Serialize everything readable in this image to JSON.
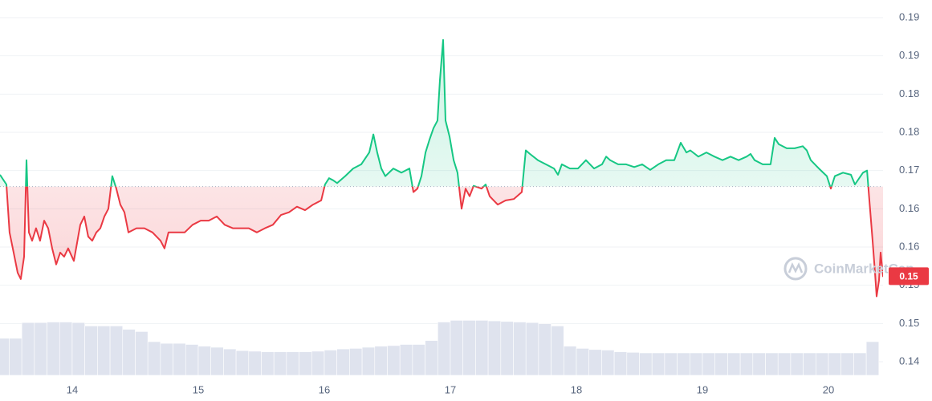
{
  "chart_data": {
    "type": "line",
    "watermark": "CoinMarketCap",
    "x": [
      13.427,
      13.478,
      13.503,
      13.535,
      13.567,
      13.592,
      13.618,
      13.637,
      13.656,
      13.682,
      13.713,
      13.745,
      13.777,
      13.809,
      13.841,
      13.873,
      13.905,
      13.936,
      13.968,
      14.013,
      14.064,
      14.096,
      14.127,
      14.159,
      14.191,
      14.223,
      14.255,
      14.287,
      14.318,
      14.35,
      14.382,
      14.414,
      14.446,
      14.51,
      14.573,
      14.637,
      14.701,
      14.732,
      14.764,
      14.828,
      14.892,
      14.955,
      15.019,
      15.083,
      15.147,
      15.21,
      15.274,
      15.338,
      15.401,
      15.465,
      15.529,
      15.592,
      15.656,
      15.72,
      15.783,
      15.847,
      15.911,
      15.975,
      16.006,
      16.038,
      16.07,
      16.102,
      16.166,
      16.229,
      16.293,
      16.357,
      16.389,
      16.42,
      16.452,
      16.484,
      16.548,
      16.612,
      16.675,
      16.707,
      16.739,
      16.771,
      16.803,
      16.834,
      16.866,
      16.898,
      16.917,
      16.943,
      16.962,
      16.994,
      17.026,
      17.057,
      17.089,
      17.121,
      17.153,
      17.185,
      17.248,
      17.28,
      17.312,
      17.344,
      17.376,
      17.439,
      17.503,
      17.567,
      17.599,
      17.631,
      17.694,
      17.758,
      17.822,
      17.854,
      17.885,
      17.949,
      18.013,
      18.076,
      18.14,
      18.204,
      18.236,
      18.268,
      18.331,
      18.395,
      18.459,
      18.522,
      18.586,
      18.65,
      18.713,
      18.777,
      18.828,
      18.873,
      18.904,
      18.968,
      19.032,
      19.096,
      19.159,
      19.223,
      19.287,
      19.35,
      19.382,
      19.414,
      19.478,
      19.541,
      19.573,
      19.605,
      19.669,
      19.732,
      19.796,
      19.828,
      19.86,
      19.924,
      19.987,
      20.019,
      20.051,
      20.115,
      20.178,
      20.21,
      20.274,
      20.306,
      20.325,
      20.35,
      20.369,
      20.382,
      20.401,
      20.414,
      20.433
    ],
    "values": [
      0.1694,
      0.168,
      0.1611,
      0.1582,
      0.1553,
      0.1544,
      0.1576,
      0.1715,
      0.1611,
      0.1599,
      0.1617,
      0.1599,
      0.1628,
      0.1617,
      0.1588,
      0.1565,
      0.1582,
      0.1576,
      0.1588,
      0.157,
      0.1622,
      0.1634,
      0.1605,
      0.1599,
      0.1611,
      0.1617,
      0.1634,
      0.1645,
      0.1692,
      0.1674,
      0.1651,
      0.164,
      0.1611,
      0.1617,
      0.1617,
      0.1611,
      0.1599,
      0.1588,
      0.1611,
      0.1611,
      0.1611,
      0.1622,
      0.1628,
      0.1628,
      0.1634,
      0.1622,
      0.1617,
      0.1617,
      0.1617,
      0.1611,
      0.1617,
      0.1622,
      0.1636,
      0.164,
      0.1648,
      0.1643,
      0.1651,
      0.1657,
      0.168,
      0.1689,
      0.1686,
      0.1682,
      0.1692,
      0.1703,
      0.1709,
      0.1726,
      0.1752,
      0.1726,
      0.1703,
      0.1692,
      0.1703,
      0.1697,
      0.1703,
      0.1669,
      0.1674,
      0.1692,
      0.1726,
      0.1744,
      0.1761,
      0.1772,
      0.183,
      0.1888,
      0.1772,
      0.1749,
      0.1715,
      0.1697,
      0.1645,
      0.1674,
      0.1663,
      0.1678,
      0.1674,
      0.168,
      0.1663,
      0.1657,
      0.1651,
      0.1657,
      0.1659,
      0.1669,
      0.1729,
      0.1724,
      0.1715,
      0.1709,
      0.1703,
      0.1694,
      0.1709,
      0.1703,
      0.1703,
      0.1715,
      0.1703,
      0.1709,
      0.172,
      0.1715,
      0.1709,
      0.1709,
      0.1705,
      0.1709,
      0.1701,
      0.1709,
      0.1715,
      0.1715,
      0.174,
      0.1726,
      0.1729,
      0.172,
      0.1726,
      0.172,
      0.1715,
      0.172,
      0.1715,
      0.172,
      0.1724,
      0.1715,
      0.1709,
      0.1709,
      0.1747,
      0.1738,
      0.1732,
      0.1732,
      0.1735,
      0.1729,
      0.1715,
      0.1703,
      0.1692,
      0.1674,
      0.1692,
      0.1697,
      0.1694,
      0.168,
      0.1697,
      0.17,
      0.1657,
      0.1599,
      0.1553,
      0.1519,
      0.1542,
      0.1582,
      0.1547
    ],
    "color_above": "#16c784",
    "color_below": "#ea3943",
    "baseline": 0.1677,
    "current_price": {
      "value": 0.1548,
      "label": "0.15"
    },
    "xlim": [
      13.427,
      20.433
    ],
    "xticks": [
      14,
      15,
      16,
      17,
      18,
      19,
      20
    ],
    "ylim": [
      0.1425,
      0.192
    ],
    "yticks": [
      {
        "value": 0.1425,
        "label": "0.14"
      },
      {
        "value": 0.148,
        "label": "0.15"
      },
      {
        "value": 0.1535,
        "label": "0.15"
      },
      {
        "value": 0.159,
        "label": "0.16"
      },
      {
        "value": 0.1645,
        "label": "0.16"
      },
      {
        "value": 0.17,
        "label": "0.17"
      },
      {
        "value": 0.1755,
        "label": "0.18"
      },
      {
        "value": 0.181,
        "label": "0.18"
      },
      {
        "value": 0.1865,
        "label": "0.19"
      },
      {
        "value": 0.192,
        "label": "0.19"
      }
    ],
    "grid": true,
    "volume": {
      "color": "#dfe3ee",
      "ylim": [
        0,
        100
      ],
      "x": [
        13.45,
        13.55,
        13.65,
        13.75,
        13.85,
        13.95,
        14.05,
        14.15,
        14.25,
        14.35,
        14.45,
        14.55,
        14.65,
        14.75,
        14.85,
        14.95,
        15.05,
        15.15,
        15.25,
        15.35,
        15.45,
        15.55,
        15.65,
        15.75,
        15.85,
        15.95,
        16.05,
        16.15,
        16.25,
        16.35,
        16.45,
        16.55,
        16.65,
        16.75,
        16.85,
        16.95,
        17.05,
        17.15,
        17.25,
        17.35,
        17.45,
        17.55,
        17.65,
        17.75,
        17.85,
        17.95,
        18.05,
        18.15,
        18.25,
        18.35,
        18.45,
        18.55,
        18.65,
        18.75,
        18.85,
        18.95,
        19.05,
        19.15,
        19.25,
        19.35,
        19.45,
        19.55,
        19.65,
        19.75,
        19.85,
        19.95,
        20.05,
        20.15,
        20.25,
        20.35
      ],
      "values": [
        66,
        66,
        94,
        94,
        95,
        95,
        94,
        88,
        88,
        88,
        82,
        78,
        60,
        57,
        57,
        55,
        52,
        50,
        47,
        44,
        43,
        42,
        42,
        42,
        42,
        43,
        45,
        47,
        48,
        50,
        52,
        53,
        55,
        55,
        62,
        95,
        98,
        98,
        98,
        97,
        96,
        95,
        94,
        92,
        88,
        52,
        48,
        46,
        45,
        42,
        41,
        40,
        40,
        40,
        40,
        40,
        40,
        40,
        40,
        40,
        40,
        40,
        40,
        40,
        40,
        40,
        40,
        40,
        40,
        60
      ]
    }
  }
}
